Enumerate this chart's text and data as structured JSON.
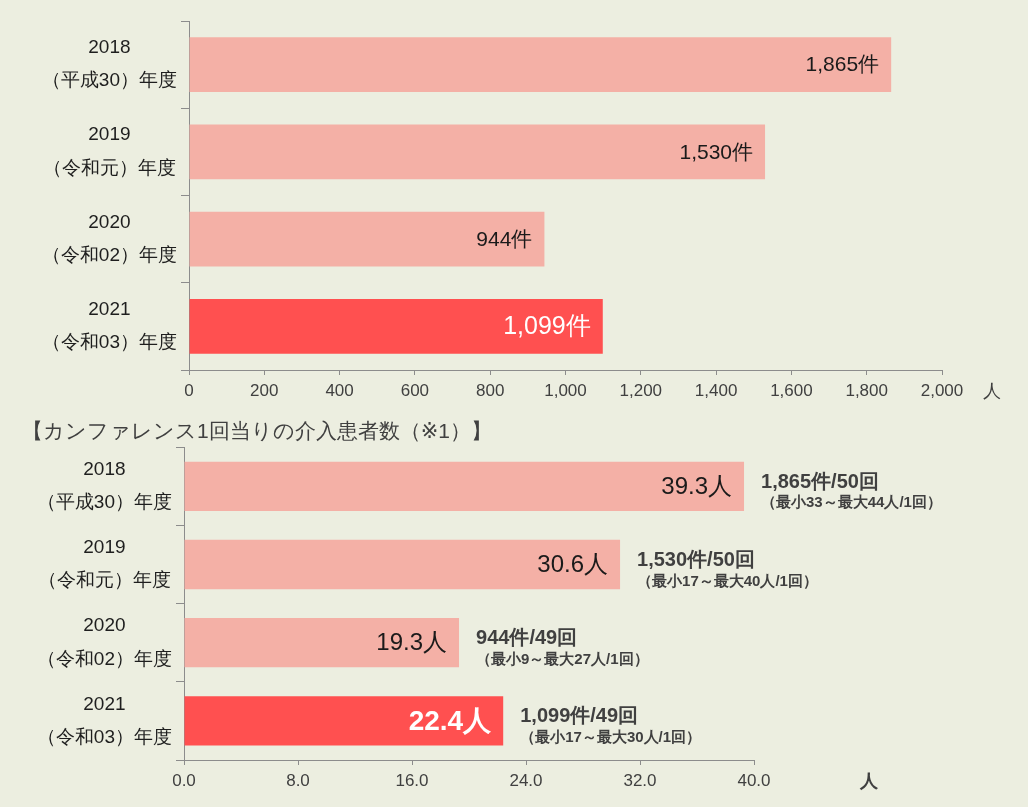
{
  "chart_data": [
    {
      "type": "bar",
      "orientation": "horizontal",
      "categories": [
        "2018\n（平成30）年度",
        "2019\n（令和元）年度",
        "2020\n（令和02）年度",
        "2021\n（令和03）年度"
      ],
      "values": [
        1865,
        1530,
        944,
        1099
      ],
      "colors": [
        "#f4b0a6",
        "#f4b0a6",
        "#f4b0a6",
        "#ff5050"
      ],
      "value_labels": [
        "1,865件",
        "1,530件",
        "944件",
        "1,099件"
      ],
      "xlim": [
        0,
        2000
      ],
      "xticks": [
        0,
        200,
        400,
        600,
        800,
        {
          "value": 1000,
          "label": "1,000"
        },
        {
          "value": 1200,
          "label": "1,200"
        },
        {
          "value": 1400,
          "label": "1,400"
        },
        {
          "value": 1600,
          "label": "1,600"
        },
        {
          "value": 1800,
          "label": "1,800"
        },
        {
          "value": 2000,
          "label": "2,000"
        }
      ],
      "xlabel": "人",
      "grid": false,
      "legend": false
    },
    {
      "type": "bar",
      "orientation": "horizontal",
      "title": "【カンファレンス1回当りの介入患者数（※1）】",
      "categories": [
        "2018\n（平成30）年度",
        "2019\n（令和元）年度",
        "2020\n（令和02）年度",
        "2021\n（令和03）年度"
      ],
      "values": [
        39.3,
        30.6,
        19.3,
        22.4
      ],
      "colors": [
        "#f4b0a6",
        "#f4b0a6",
        "#f4b0a6",
        "#ff5050"
      ],
      "value_labels": [
        "39.3人",
        "30.6人",
        "19.3人",
        "22.4人"
      ],
      "xlim": [
        0,
        40
      ],
      "xticks": [
        {
          "value": 0,
          "label": "0.0"
        },
        {
          "value": 8,
          "label": "8.0"
        },
        {
          "value": 16,
          "label": "16.0"
        },
        {
          "value": 24,
          "label": "24.0"
        },
        {
          "value": 32,
          "label": "32.0"
        },
        {
          "value": 40,
          "label": "40.0"
        }
      ],
      "xlabel": "人",
      "grid": false,
      "legend": false,
      "annotations": [
        {
          "text": "1,865件/50回",
          "x": 39.3,
          "y": "2018\n（平成30）年度"
        },
        {
          "text": "（最小33～最大44人/1回）",
          "x": 39.3,
          "y": "2018\n（平成30）年度"
        },
        {
          "text": "1,530件/50回",
          "x": 30.6,
          "y": "2019\n（令和元）年度"
        },
        {
          "text": "（最小17～最大40人/1回）",
          "x": 30.6,
          "y": "2019\n（令和元）年度"
        },
        {
          "text": "944件/49回",
          "x": 19.3,
          "y": "2020\n（令和02）年度"
        },
        {
          "text": "（最小9～最大27人/1回）",
          "x": 19.3,
          "y": "2020\n（令和02）年度"
        },
        {
          "text": "1,099件/49回",
          "x": 22.4,
          "y": "2021\n（令和03）年度"
        },
        {
          "text": "（最小17～最大30人/1回）",
          "x": 22.4,
          "y": "2021\n（令和03）年度"
        }
      ]
    }
  ]
}
